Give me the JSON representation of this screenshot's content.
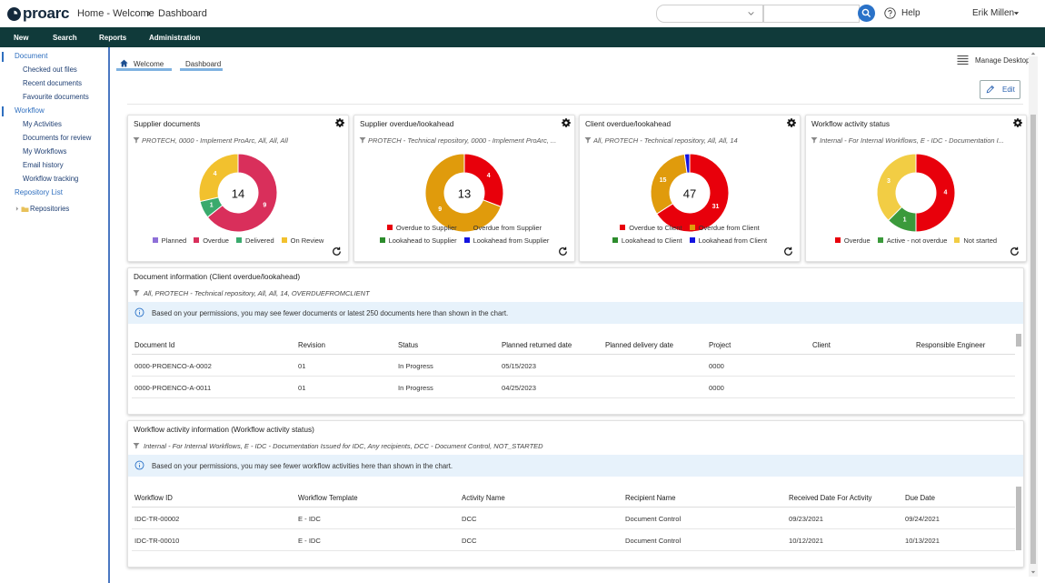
{
  "header": {
    "logo": "proarc",
    "breadcrumb": [
      "Home - Welcome",
      "Dashboard"
    ],
    "help": "Help",
    "user": "Erik Millen"
  },
  "menu": [
    "New",
    "Search",
    "Reports",
    "Administration"
  ],
  "sidebar": [
    {
      "title": "Document",
      "items": [
        "Checked out files",
        "Recent documents",
        "Favourite documents"
      ]
    },
    {
      "title": "Workflow",
      "items": [
        "My Activities",
        "Documents for review",
        "My Workflows",
        "Email history",
        "Workflow tracking"
      ]
    },
    {
      "title": "Repository List",
      "items": [
        "Repositories"
      ]
    }
  ],
  "tabs": [
    "Welcome",
    "Dashboard"
  ],
  "toolbar": {
    "manage": "Manage Desktop",
    "edit": "Edit"
  },
  "chart_data": [
    {
      "type": "donut",
      "title": "Supplier documents",
      "subtitle": "PROTECH, 0000 - Implement ProArc, All, All, All",
      "total": 14,
      "categories": [
        "Planned",
        "Overdue",
        "Delivered",
        "On Review"
      ],
      "values": [
        0,
        9,
        1,
        4
      ],
      "colors": [
        "#8e6fd8",
        "#d92f5b",
        "#3aaa6d",
        "#f2c12e"
      ]
    },
    {
      "type": "donut",
      "title": "Supplier overdue/lookahead",
      "subtitle": "PROTECH - Technical repository, 0000 - Implement ProArc, ...",
      "total": 13,
      "categories": [
        "Overdue to Supplier",
        "Overdue from Supplier",
        "Lookahead to Supplier",
        "Lookahead from Supplier"
      ],
      "values": [
        4,
        9,
        0,
        0
      ],
      "colors": [
        "#e8000b",
        "#e09b0c",
        "#2c8c2c",
        "#1414e0"
      ]
    },
    {
      "type": "donut",
      "title": "Client overdue/lookahead",
      "subtitle": "All, PROTECH - Technical repository, All, All, 14",
      "total": 47,
      "categories": [
        "Overdue to Client",
        "Overdue from Client",
        "Lookahead to Client",
        "Lookahead from Client"
      ],
      "values": [
        31,
        15,
        0,
        1
      ],
      "colors": [
        "#e8000b",
        "#e09b0c",
        "#2c8c2c",
        "#1414e0"
      ]
    },
    {
      "type": "donut",
      "title": "Workflow activity status",
      "subtitle": "Internal - For Internal Workflows, E - IDC - Documentation I...",
      "categories": [
        "Overdue",
        "Active - not overdue",
        "Not started"
      ],
      "values": [
        4,
        1,
        3
      ],
      "colors": [
        "#e8000b",
        "#3b9a3b",
        "#f2cd44"
      ]
    }
  ],
  "tables": [
    {
      "title": "Document information (Client overdue/lookahead)",
      "filter": "All, PROTECH - Technical repository, All, All, 14, OVERDUEFROMCLIENT",
      "info": "Based on your permissions, you may see fewer documents or latest 250 documents here than shown in the chart.",
      "columns": [
        "Document Id",
        "Revision",
        "Status",
        "Planned returned date",
        "Planned delivery date",
        "Project",
        "Client",
        "Responsible Engineer"
      ],
      "rows": [
        [
          "0000-PROENCO-A-0002",
          "01",
          "In Progress",
          "05/15/2023",
          null,
          "0000",
          null,
          null
        ],
        [
          "0000-PROENCO-A-0011",
          "01",
          "In Progress",
          "04/25/2023",
          null,
          "0000",
          null,
          null
        ]
      ]
    },
    {
      "title": "Workflow activity information (Workflow activity status)",
      "filter": "Internal - For Internal Workflows, E - IDC - Documentation Issued for IDC, Any recipients, DCC - Document Control, NOT_STARTED",
      "info": "Based on your permissions, you may see fewer workflow activities here than shown in the chart.",
      "columns": [
        "Workflow ID",
        "Workflow Template",
        "Activity Name",
        "Recipient Name",
        "Received Date For Activity",
        "Due Date"
      ],
      "rows": [
        [
          "IDC-TR-00002",
          "E - IDC",
          "DCC",
          "Document Control",
          "09/23/2021",
          "09/24/2021"
        ],
        [
          "IDC-TR-00010",
          "E - IDC",
          "DCC",
          "Document Control",
          "10/12/2021",
          "10/13/2021"
        ]
      ]
    }
  ]
}
